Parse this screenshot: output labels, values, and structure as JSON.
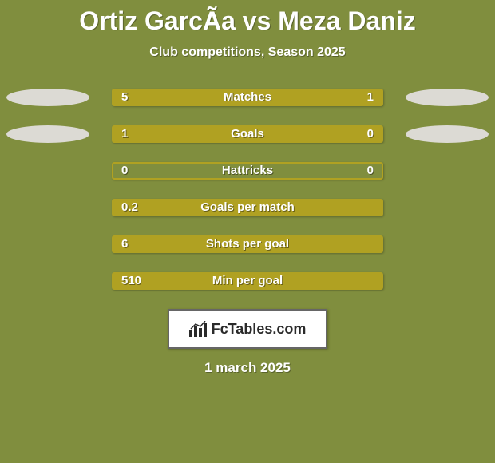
{
  "colors": {
    "background": "#808e3e",
    "title": "#ffffff",
    "subtitle": "#ffffff",
    "bar_fill": "#b0a122",
    "bar_empty": "#808e3e",
    "bar_border": "#b0a122",
    "bar_text": "#ffffff",
    "badge_fill": "#dcdad4",
    "logo_bg": "#ffffff",
    "logo_text": "#2a2a2a",
    "date_text": "#ffffff"
  },
  "title": "Ortiz GarcÃa vs Meza Daniz",
  "subtitle": "Club competitions, Season 2025",
  "rows": [
    {
      "label": "Matches",
      "left": "5",
      "right": "1",
      "left_pct": 78,
      "right_pct": 22,
      "badge_left": true,
      "badge_right": true
    },
    {
      "label": "Goals",
      "left": "1",
      "right": "0",
      "left_pct": 78,
      "right_pct": 22,
      "badge_left": true,
      "badge_right": true
    },
    {
      "label": "Hattricks",
      "left": "0",
      "right": "0",
      "left_pct": 0,
      "right_pct": 0,
      "badge_left": false,
      "badge_right": false
    },
    {
      "label": "Goals per match",
      "left": "0.2",
      "right": "",
      "left_pct": 100,
      "right_pct": 0,
      "badge_left": false,
      "badge_right": false
    },
    {
      "label": "Shots per goal",
      "left": "6",
      "right": "",
      "left_pct": 100,
      "right_pct": 0,
      "badge_left": false,
      "badge_right": false
    },
    {
      "label": "Min per goal",
      "left": "510",
      "right": "",
      "left_pct": 100,
      "right_pct": 0,
      "badge_left": false,
      "badge_right": false
    }
  ],
  "logo_text": "FcTables.com",
  "date": "1 march 2025",
  "fonts": {
    "title_size": 32,
    "subtitle_size": 16,
    "bar_label_size": 15,
    "logo_size": 18,
    "date_size": 17
  }
}
